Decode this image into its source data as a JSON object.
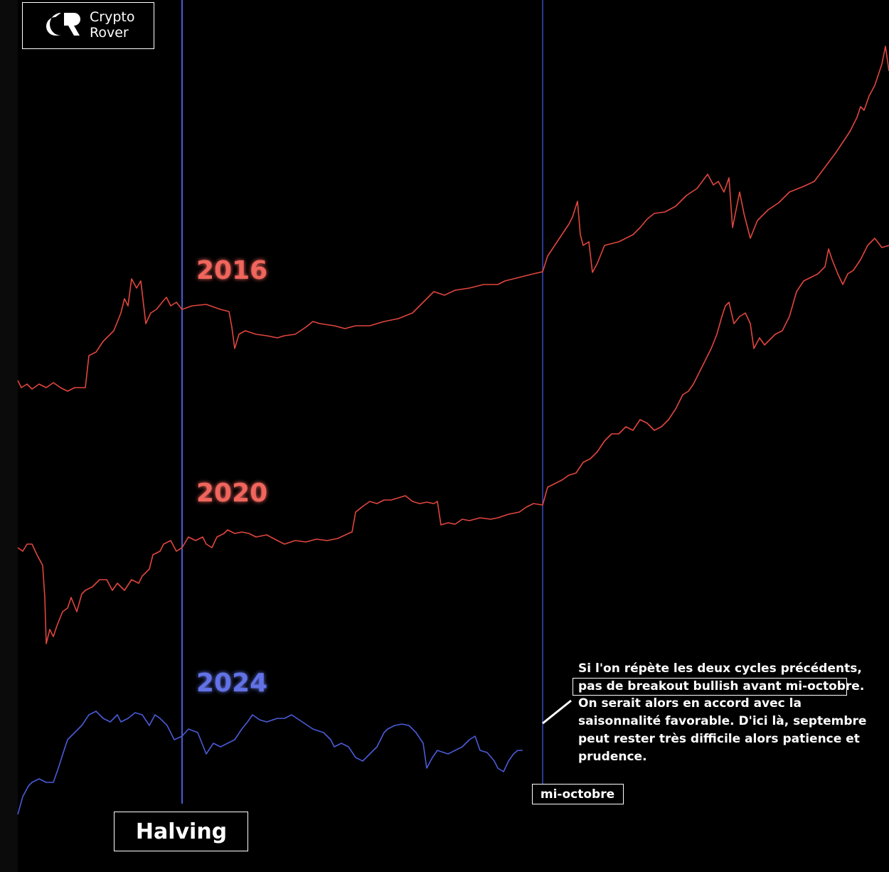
{
  "logo": {
    "line1": "Crypto",
    "line2": "Rover"
  },
  "labels": {
    "cycle_2016": "2016",
    "cycle_2020": "2020",
    "cycle_2024": "2024"
  },
  "markers": {
    "halving": "Halving",
    "mid_october": "mi-octobre"
  },
  "annotation": {
    "lines": [
      "Si l'on répète les deux cycles précédents,",
      "pas de breakout bullish avant mi-octobre.",
      "On serait alors en accord avec la",
      "saisonnalité favorable. D'ici là, septembre",
      "peut rester très difficile alors patience et",
      "prudence."
    ]
  }
}
